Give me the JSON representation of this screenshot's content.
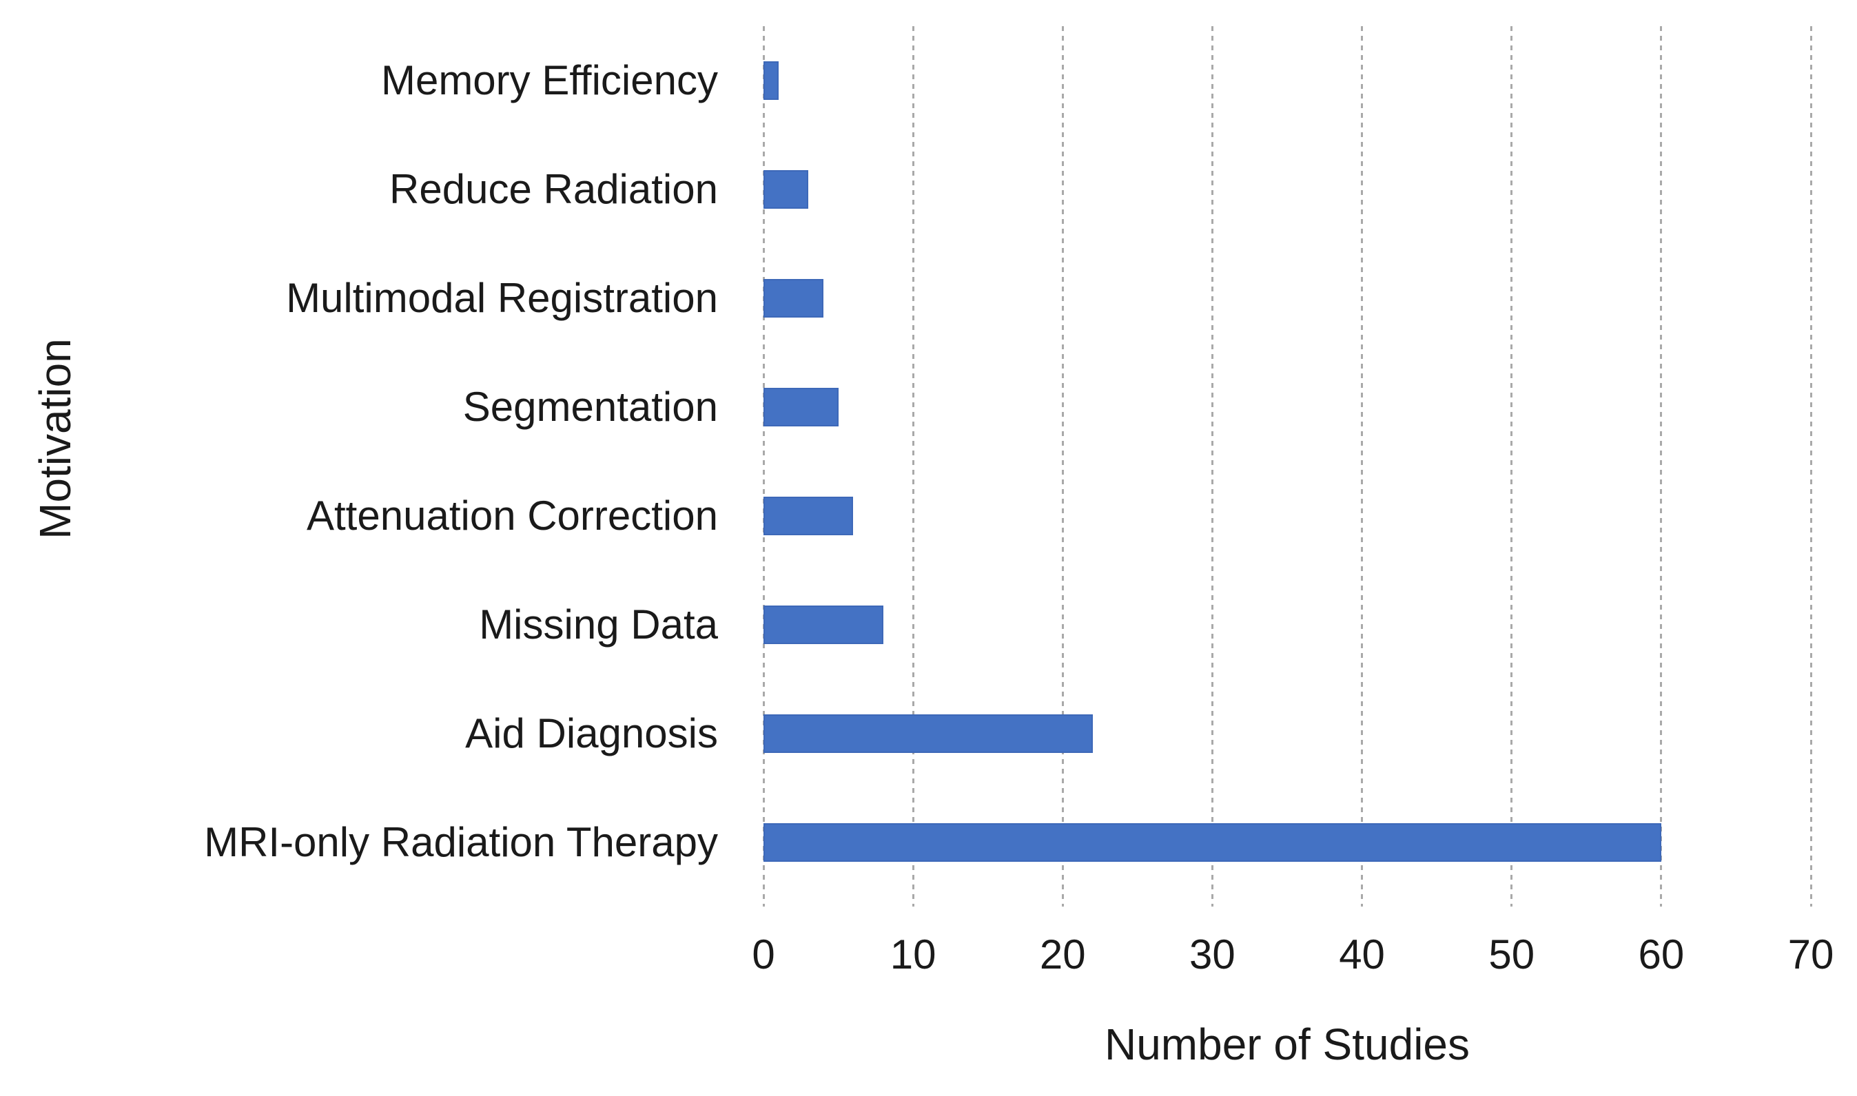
{
  "chart_data": {
    "type": "bar",
    "orientation": "horizontal",
    "categories": [
      "Memory Efficiency",
      "Reduce Radiation",
      "Multimodal Registration",
      "Segmentation",
      "Attenuation Correction",
      "Missing Data",
      "Aid Diagnosis",
      "MRI-only Radiation Therapy"
    ],
    "values": [
      1,
      3,
      4,
      5,
      6,
      8,
      22,
      60
    ],
    "xlabel": "Number of Studies",
    "ylabel": "Motivation",
    "xlim": [
      0,
      70
    ],
    "xticks": [
      0,
      10,
      20,
      30,
      40,
      50,
      60,
      70
    ],
    "grid": "vertical-dotted",
    "legend": "none",
    "bar_color": "#4472C4",
    "gridline_color": "#A9A9A9",
    "text_color": "#1A1A1A",
    "background_color": "#FFFFFF"
  }
}
